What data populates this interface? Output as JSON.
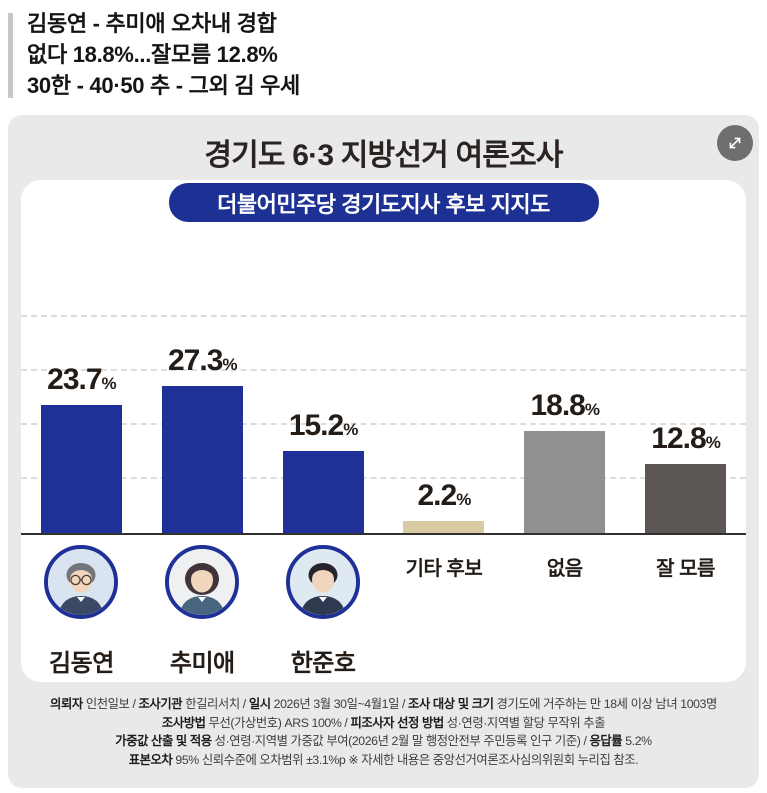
{
  "headline": {
    "lines": [
      "김동연 - 추미애 오차내 경합",
      "없다 18.8%...잘모름 12.8%",
      "30한 - 40·50 추 - 그외 김 우세"
    ]
  },
  "card": {
    "title": "경기도 6·3 지방선거 여론조사",
    "subtitle_banner": "더불어민주당 경기도지사 후보 지지도",
    "expand_button": "expand"
  },
  "chart_data": {
    "type": "bar",
    "title": "더불어민주당 경기도지사 후보 지지도",
    "unit": "%",
    "categories": [
      "김동연",
      "추미애",
      "한준호",
      "기타 후보",
      "없음",
      "잘 모름"
    ],
    "values": [
      23.7,
      27.3,
      15.2,
      2.2,
      18.8,
      12.8
    ],
    "bar_colors": [
      "#1f3198",
      "#1f3198",
      "#1f3198",
      "#d8cba4",
      "#909090",
      "#5c5755"
    ],
    "has_photo": [
      true,
      true,
      true,
      false,
      false,
      false
    ],
    "ylim": [
      0,
      52
    ],
    "gridline_step": 10,
    "grid": "horizontal-dashed",
    "value_labels": "above-bars",
    "legend": "none"
  },
  "footer": {
    "lines": [
      [
        {
          "b": 1,
          "t": "의뢰자"
        },
        {
          "b": 0,
          "t": " 인천일보 / "
        },
        {
          "b": 1,
          "t": "조사기관"
        },
        {
          "b": 0,
          "t": " 한길리서치 / "
        },
        {
          "b": 1,
          "t": "일시"
        },
        {
          "b": 0,
          "t": " 2026년 3월 30일~4월1일 / "
        },
        {
          "b": 1,
          "t": "조사 대상 및 크기"
        },
        {
          "b": 0,
          "t": " 경기도에 거주하는 만 18세 이상 남녀 1003명"
        }
      ],
      [
        {
          "b": 1,
          "t": "조사방법"
        },
        {
          "b": 0,
          "t": " 무선(가상번호) ARS 100% / "
        },
        {
          "b": 1,
          "t": "피조사자 선정 방법"
        },
        {
          "b": 0,
          "t": " 성·연령·지역별 할당 무작위 추출"
        }
      ],
      [
        {
          "b": 1,
          "t": "가중값 산출 및 적용"
        },
        {
          "b": 0,
          "t": " 성·연령·지역별 가중값 부여(2026년 2월 말 행정안전부 주민등록 인구 기준) / "
        },
        {
          "b": 1,
          "t": "응답률"
        },
        {
          "b": 0,
          "t": " 5.2%"
        }
      ],
      [
        {
          "b": 1,
          "t": "표본오차"
        },
        {
          "b": 0,
          "t": " 95% 신뢰수준에 오차범위 ±3.1%p ※ 자세한 내용은 중앙선거여론조사심의위원회 누리집 참조."
        }
      ]
    ]
  },
  "colors": {
    "bar_blue": "#1f3198",
    "banner_blue": "#1d3093",
    "bar_beige": "#d8cba4",
    "bar_gray": "#909090",
    "bar_darkgray": "#5c5755",
    "card_bg": "#e9e9e9",
    "value_text": "#241c17"
  }
}
